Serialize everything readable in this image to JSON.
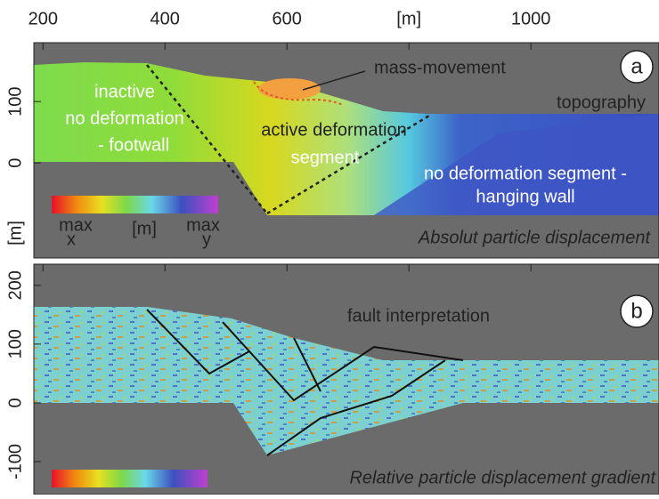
{
  "chart_data": [
    {
      "type": "field",
      "panel_label": "a",
      "xlim": [
        185,
        1210
      ],
      "xticks": [
        200,
        400,
        600,
        {
          "value": 800,
          "label": "[m]"
        },
        1000
      ],
      "ylim": [
        -155,
        196
      ],
      "yticks": [
        0,
        100
      ],
      "ylabel": "[m]",
      "caption": "Absolut particle displacement",
      "annotations": [
        "mass-movement",
        "topography",
        "inactive",
        "no deformation",
        "- footwall",
        "active deformation",
        "segment",
        "no deformation segment -",
        "hanging wall"
      ],
      "colorbar_labels": [
        "max",
        "x",
        "[m]",
        "max",
        "y"
      ]
    },
    {
      "type": "field",
      "panel_label": "b",
      "xlim": [
        185,
        1210
      ],
      "ylim": [
        -156,
        236
      ],
      "yticks": [
        200,
        100,
        0,
        -100
      ],
      "caption": "Relative particle displacement gradient",
      "annotations": [
        "fault interpretation"
      ]
    }
  ]
}
